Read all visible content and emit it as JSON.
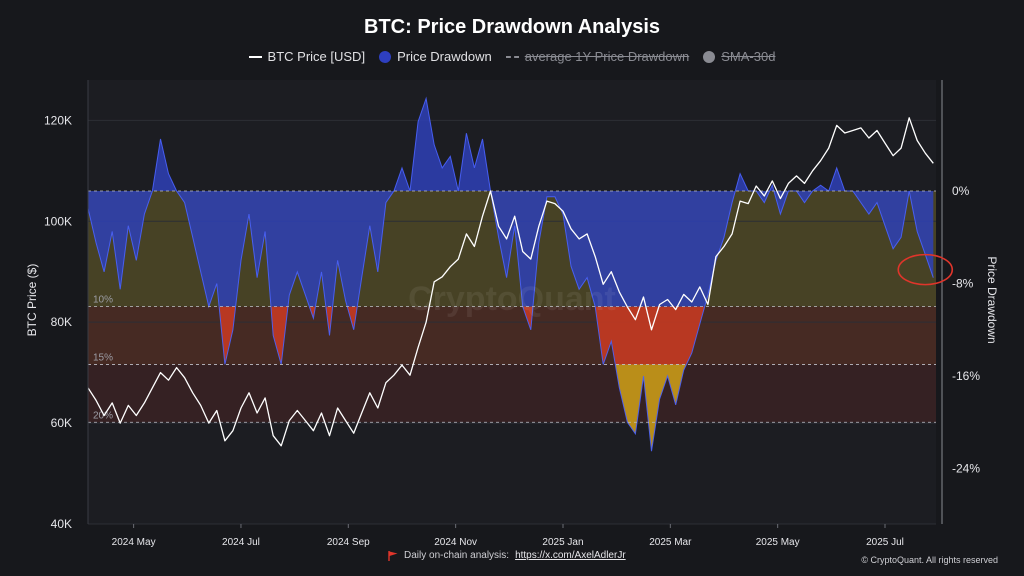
{
  "chart_data": {
    "type": "line",
    "title": "BTC: Price Drawdown Analysis",
    "legend": [
      {
        "label": "BTC Price [USD]",
        "color": "#ffffff",
        "style": "line",
        "enabled": true
      },
      {
        "label": "Price Drawdown",
        "color": "#2e3fc0",
        "style": "dot",
        "enabled": true
      },
      {
        "label": "average 1Y Price Drawdown",
        "color": "#8a8b92",
        "style": "dash",
        "enabled": false
      },
      {
        "label": "SMA-30d",
        "color": "#8a8b92",
        "style": "dot",
        "enabled": false
      }
    ],
    "left_axis": {
      "label": "BTC Price ($)",
      "range": [
        40000,
        128000
      ],
      "ticks": [
        40000,
        60000,
        80000,
        100000,
        120000
      ],
      "tick_labels": [
        "40K",
        "60K",
        "80K",
        "100K",
        "120K"
      ]
    },
    "right_axis": {
      "label": "Price Drawdown",
      "range": [
        -28.8,
        9.6
      ],
      "ticks": [
        0,
        -8,
        -16,
        -24
      ],
      "tick_labels": [
        "0%",
        "-8%",
        "-16%",
        "-24%"
      ]
    },
    "x_axis": {
      "range": [
        0,
        15.8
      ],
      "ticks": [
        0.85,
        2.85,
        4.85,
        6.85,
        8.85,
        10.85,
        12.85,
        14.85
      ],
      "tick_labels": [
        "2024 May",
        "2024 Jul",
        "2024 Sep",
        "2024 Nov",
        "2025 Jan",
        "2025 Mar",
        "2025 May",
        "2025 Jul"
      ]
    },
    "zones": [
      {
        "label": "10%",
        "from": 0,
        "to": -10,
        "color": "#6b6128"
      },
      {
        "label": "15%",
        "from": -10,
        "to": -15,
        "color": "#6a3524"
      },
      {
        "label": "20%",
        "from": -15,
        "to": -20,
        "color": "#4a2424"
      }
    ],
    "drawdown_colors": {
      "shallow": "#2e40b6",
      "mid": "#c43a22",
      "deep": "#c99a18"
    },
    "series": [
      {
        "name": "BTC Price [USD]",
        "color": "#ffffff",
        "x": [
          0,
          0.15,
          0.3,
          0.45,
          0.6,
          0.75,
          0.9,
          1.05,
          1.2,
          1.35,
          1.5,
          1.65,
          1.8,
          1.95,
          2.1,
          2.25,
          2.4,
          2.55,
          2.7,
          2.85,
          3.0,
          3.15,
          3.3,
          3.45,
          3.6,
          3.75,
          3.9,
          4.05,
          4.2,
          4.35,
          4.5,
          4.65,
          4.8,
          4.95,
          5.1,
          5.25,
          5.4,
          5.55,
          5.7,
          5.85,
          6.0,
          6.15,
          6.3,
          6.45,
          6.6,
          6.75,
          6.9,
          7.05,
          7.2,
          7.35,
          7.5,
          7.65,
          7.8,
          7.95,
          8.1,
          8.25,
          8.4,
          8.55,
          8.7,
          8.85,
          9.0,
          9.15,
          9.3,
          9.45,
          9.6,
          9.75,
          9.9,
          10.05,
          10.2,
          10.35,
          10.5,
          10.65,
          10.8,
          10.95,
          11.1,
          11.25,
          11.4,
          11.55,
          11.7,
          11.85,
          12.0,
          12.15,
          12.3,
          12.45,
          12.6,
          12.75,
          12.9,
          13.05,
          13.2,
          13.35,
          13.5,
          13.65,
          13.8,
          13.95,
          14.1,
          14.25,
          14.4,
          14.55,
          14.7,
          14.85,
          15.0,
          15.15,
          15.3,
          15.45,
          15.6,
          15.75
        ],
        "values": [
          67000,
          64500,
          61500,
          64000,
          60000,
          63500,
          61500,
          64000,
          67000,
          70000,
          68500,
          71000,
          69000,
          66000,
          63500,
          60000,
          62500,
          56500,
          58500,
          63000,
          66000,
          62000,
          65000,
          57500,
          55500,
          60500,
          62500,
          60500,
          58500,
          62000,
          57500,
          63000,
          60500,
          58000,
          62000,
          66000,
          63000,
          68000,
          69500,
          71500,
          69500,
          75000,
          80000,
          88000,
          89000,
          91000,
          92500,
          97500,
          95000,
          101000,
          106000,
          99000,
          96500,
          101000,
          94000,
          92500,
          99000,
          104000,
          103500,
          102000,
          98500,
          96500,
          97500,
          93000,
          87500,
          90000,
          86000,
          83000,
          80500,
          85000,
          78500,
          83500,
          84500,
          82500,
          85500,
          84000,
          87000,
          83500,
          93000,
          95000,
          97500,
          104000,
          103500,
          107000,
          105000,
          108000,
          104500,
          107500,
          109000,
          107500,
          110000,
          112000,
          114500,
          119000,
          117500,
          118000,
          118500,
          116500,
          118000,
          115500,
          113000,
          114500,
          120500,
          116000,
          113500,
          111500
        ]
      },
      {
        "name": "Price Drawdown",
        "x": [
          0,
          0.15,
          0.3,
          0.45,
          0.6,
          0.75,
          0.9,
          1.05,
          1.2,
          1.35,
          1.5,
          1.65,
          1.8,
          1.95,
          2.1,
          2.25,
          2.4,
          2.55,
          2.7,
          2.85,
          3.0,
          3.15,
          3.3,
          3.45,
          3.6,
          3.75,
          3.9,
          4.05,
          4.2,
          4.35,
          4.5,
          4.65,
          4.8,
          4.95,
          5.1,
          5.25,
          5.4,
          5.55,
          5.7,
          5.85,
          6.0,
          6.15,
          6.3,
          6.45,
          6.6,
          6.75,
          6.9,
          7.05,
          7.2,
          7.35,
          7.5,
          7.65,
          7.8,
          7.95,
          8.1,
          8.25,
          8.4,
          8.55,
          8.7,
          8.85,
          9.0,
          9.15,
          9.3,
          9.45,
          9.6,
          9.75,
          9.9,
          10.05,
          10.2,
          10.35,
          10.5,
          10.65,
          10.8,
          10.95,
          11.1,
          11.25,
          11.4,
          11.55,
          11.7,
          11.85,
          12.0,
          12.15,
          12.3,
          12.45,
          12.6,
          12.75,
          12.9,
          13.05,
          13.2,
          13.35,
          13.5,
          13.65,
          13.8,
          13.95,
          14.1,
          14.25,
          14.4,
          14.55,
          14.7,
          14.85,
          15.0,
          15.15,
          15.3,
          15.45,
          15.6,
          15.75
        ],
        "values": [
          -1.5,
          -4.5,
          -7,
          -3.5,
          -8.5,
          -3,
          -6,
          -2,
          0,
          4.5,
          1.5,
          0,
          -1,
          -4,
          -7,
          -10,
          -8,
          -15,
          -12,
          -6,
          -2,
          -7.5,
          -3.5,
          -12.5,
          -15,
          -9,
          -7,
          -9,
          -11,
          -7,
          -12.5,
          -6,
          -9.5,
          -12,
          -7.5,
          -3,
          -7,
          -1,
          0,
          2,
          0,
          6,
          8,
          4,
          2,
          3,
          0,
          5,
          2,
          4.5,
          0,
          -4,
          -7.5,
          -3,
          -10,
          -12,
          -4.5,
          -0.5,
          -0.5,
          -2,
          -6.5,
          -8.5,
          -7.5,
          -10,
          -15,
          -13,
          -17,
          -20,
          -21,
          -16,
          -22.5,
          -18,
          -16,
          -18.5,
          -15.5,
          -14,
          -11.5,
          -9,
          -6,
          -4,
          -1,
          1.5,
          0,
          0,
          -1,
          0.5,
          -2,
          0,
          0,
          -1,
          0,
          0.5,
          0,
          2,
          0,
          0,
          -1,
          -2,
          -1,
          -3,
          -5,
          -4,
          0,
          -3.5,
          -5.5,
          -7.5
        ]
      }
    ],
    "annotation": {
      "type": "circle",
      "x": 15.6,
      "value": -6.8,
      "color": "#e0352b"
    },
    "watermark": "CryptoQuant",
    "footer": {
      "note": "Daily on-chain analysis:",
      "link": "https://x.com/AxelAdlerJr",
      "copyright": "© CryptoQuant. All rights reserved"
    }
  }
}
